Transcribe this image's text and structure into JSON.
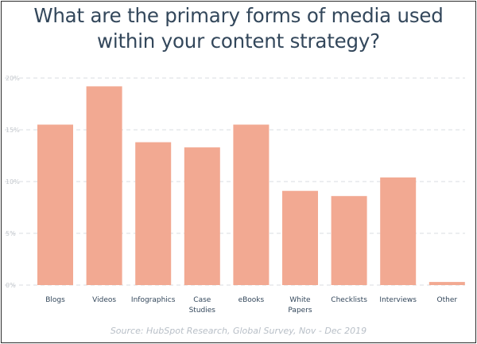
{
  "chart_data": {
    "type": "bar",
    "title_lines": [
      "What are the primary forms of media used",
      "within your content strategy?"
    ],
    "source": "Source: HubSpot Research, Global Survey, Nov - Dec 2019",
    "categories": [
      [
        "Blogs"
      ],
      [
        "Videos"
      ],
      [
        "Infographics"
      ],
      [
        "Case",
        "Studies"
      ],
      [
        "eBooks"
      ],
      [
        "White",
        "Papers"
      ],
      [
        "Checklists"
      ],
      [
        "Interviews"
      ],
      [
        "Other"
      ]
    ],
    "values": [
      15.5,
      19.2,
      13.8,
      13.3,
      15.5,
      9.1,
      8.6,
      10.4,
      0.3
    ],
    "yticks": [
      {
        "value": 0,
        "label": "0%"
      },
      {
        "value": 5,
        "label": "5%"
      },
      {
        "value": 10,
        "label": "10%"
      },
      {
        "value": 15,
        "label": "15%"
      },
      {
        "value": 20,
        "label": "20%"
      }
    ],
    "ylim": [
      0,
      20
    ],
    "grid": true,
    "bar_color": "#f2a992"
  }
}
